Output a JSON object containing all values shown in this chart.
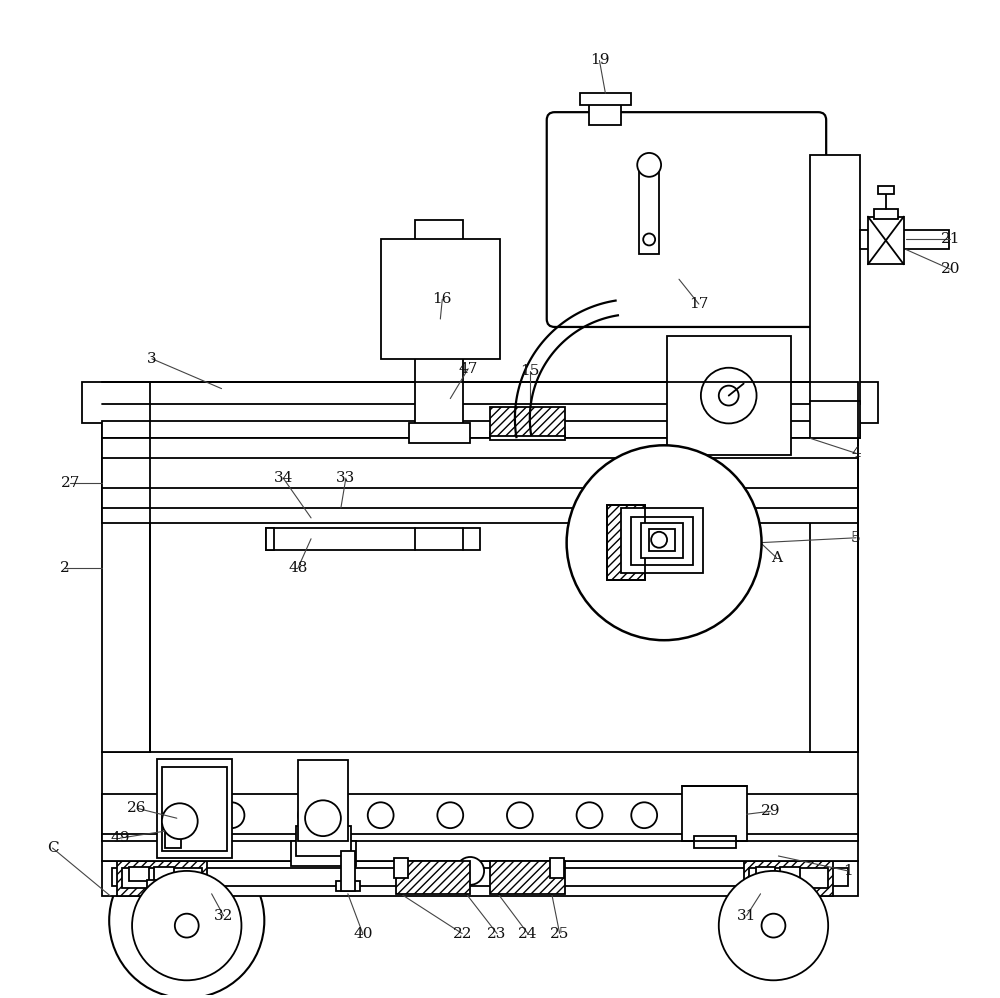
{
  "background_color": "#ffffff",
  "line_color": "#000000",
  "fig_width": 10.0,
  "fig_height": 9.98
}
